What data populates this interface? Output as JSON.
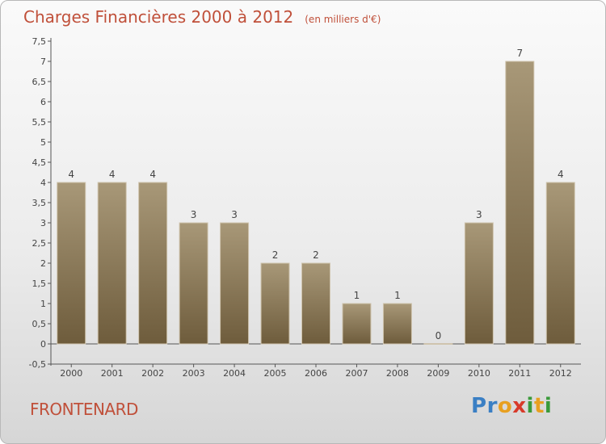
{
  "header": {
    "title": "Charges Financières 2000 à 2012",
    "unit": "(en milliers d'€)"
  },
  "commune": "FRONTENARD",
  "logo": {
    "letters": [
      {
        "ch": "P",
        "color": "#3a7fc4"
      },
      {
        "ch": "r",
        "color": "#3a7fc4"
      },
      {
        "ch": "o",
        "color": "#e8a020"
      },
      {
        "ch": "x",
        "color": "#d83a2a"
      },
      {
        "ch": "i",
        "color": "#3a9a3a"
      },
      {
        "ch": "t",
        "color": "#e8a020"
      },
      {
        "ch": "i",
        "color": "#3a9a3a"
      }
    ]
  },
  "colors": {
    "bar_top": "#a89878",
    "bar_bottom": "#6e5c3c",
    "accent": "#c0503a"
  },
  "chart_data": {
    "type": "bar",
    "categories": [
      "2000",
      "2001",
      "2002",
      "2003",
      "2004",
      "2005",
      "2006",
      "2007",
      "2008",
      "2009",
      "2010",
      "2011",
      "2012"
    ],
    "values": [
      4,
      4,
      4,
      3,
      3,
      2,
      2,
      1,
      1,
      0,
      3,
      7,
      4
    ],
    "y_ticks": [
      "-0,5",
      "0",
      "0,5",
      "1",
      "1,5",
      "2",
      "2,5",
      "3",
      "3,5",
      "4",
      "4,5",
      "5",
      "5,5",
      "6",
      "6,5",
      "7",
      "7,5"
    ],
    "ylim": [
      -0.5,
      7.5
    ],
    "grid": false,
    "title": "Charges Financières 2000 à 2012",
    "xlabel": "",
    "ylabel": ""
  }
}
